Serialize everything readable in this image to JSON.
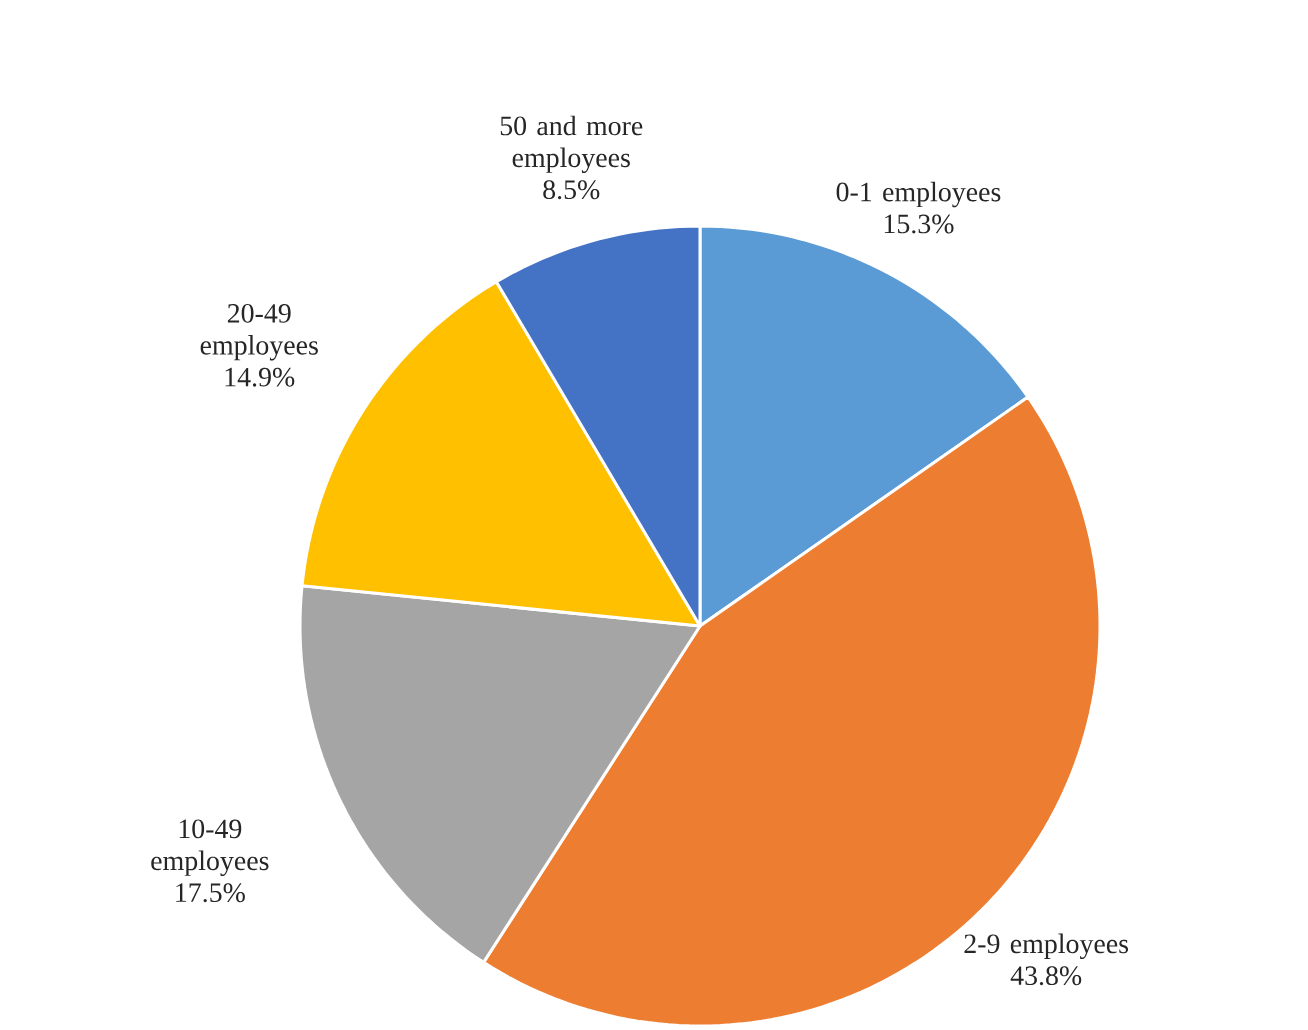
{
  "chart_data": {
    "type": "pie",
    "categories": [
      "0-1 employees",
      "2-9 employees",
      "10-49 employees",
      "20-49 employees",
      "50 and more employees"
    ],
    "values": [
      15.3,
      43.8,
      17.5,
      14.9,
      8.5
    ],
    "value_labels": [
      "15.3%",
      "43.8%",
      "17.5%",
      "14.9%",
      "8.5%"
    ],
    "colors": [
      "#5b9bd5",
      "#ed7d31",
      "#a5a5a5",
      "#ffc000",
      "#4472c4"
    ]
  }
}
